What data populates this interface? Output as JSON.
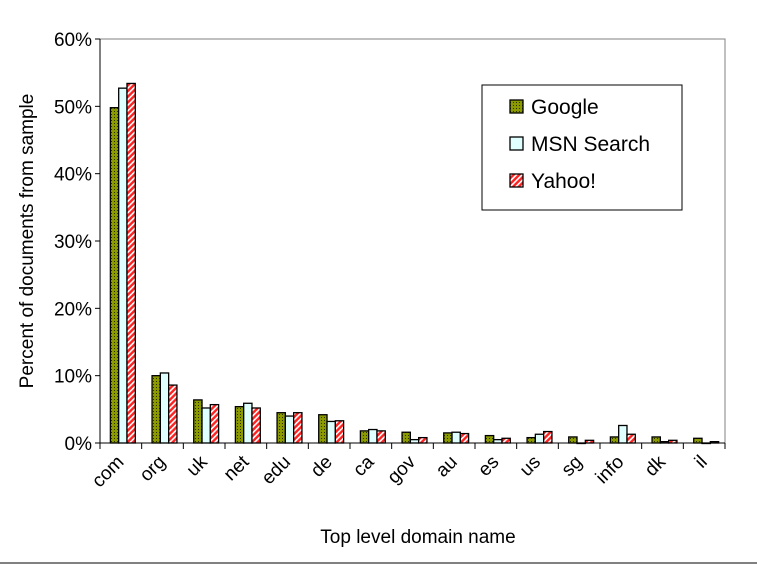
{
  "chart_data": {
    "type": "bar",
    "xlabel": "Top level domain name",
    "ylabel": "Percent of documents from sample",
    "ylim": [
      0,
      60
    ],
    "yticks": [
      "0%",
      "10%",
      "20%",
      "30%",
      "40%",
      "50%",
      "60%"
    ],
    "grid": false,
    "legend": "top-right",
    "categories": [
      "com",
      "org",
      "uk",
      "net",
      "edu",
      "de",
      "ca",
      "gov",
      "au",
      "es",
      "us",
      "sg",
      "info",
      "dk",
      "il"
    ],
    "series": [
      {
        "name": "Google",
        "color": "#8a9a00",
        "pattern": "dots",
        "values": [
          49.8,
          10.0,
          6.4,
          5.4,
          4.5,
          4.2,
          1.8,
          1.6,
          1.5,
          1.1,
          0.8,
          0.9,
          0.9,
          0.9,
          0.7
        ]
      },
      {
        "name": "MSN Search",
        "color": "#e0ffff",
        "pattern": "solid",
        "values": [
          52.7,
          10.4,
          5.2,
          5.9,
          4.0,
          3.2,
          2.0,
          0.5,
          1.6,
          0.5,
          1.3,
          0.0,
          2.6,
          0.2,
          0.0
        ]
      },
      {
        "name": "Yahoo!",
        "color": "#ff2020",
        "pattern": "diagonal",
        "values": [
          53.4,
          8.6,
          5.7,
          5.2,
          4.5,
          3.3,
          1.8,
          0.8,
          1.4,
          0.7,
          1.7,
          0.4,
          1.3,
          0.4,
          0.2
        ]
      }
    ]
  }
}
